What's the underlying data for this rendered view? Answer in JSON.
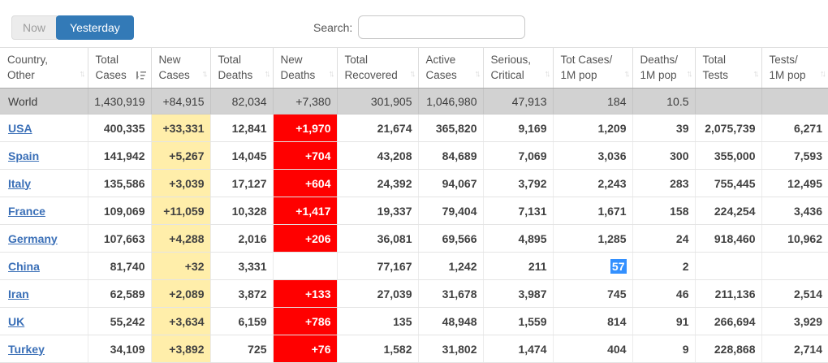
{
  "toolbar": {
    "now_label": "Now",
    "yesterday_label": "Yesterday",
    "search_label": "Search:",
    "search_value": ""
  },
  "icons": {
    "sort_up": "↑",
    "sort_down": "↓",
    "active_sort": "sort-descending"
  },
  "colors": {
    "accent": "#337ab7",
    "new_cases_bg": "#FFEEAA",
    "new_deaths_bg": "#FF0000",
    "selection": "#3390FF",
    "world_row_bg": "#D2D2D2",
    "link": "#3A6FB7"
  },
  "table": {
    "columns": [
      {
        "line1": "Country,",
        "line2": "Other",
        "key": "country",
        "sorted": false
      },
      {
        "line1": "Total",
        "line2": "Cases",
        "key": "total_cases",
        "sorted": true
      },
      {
        "line1": "New",
        "line2": "Cases",
        "key": "new_cases",
        "sorted": false
      },
      {
        "line1": "Total",
        "line2": "Deaths",
        "key": "total_deaths",
        "sorted": false
      },
      {
        "line1": "New",
        "line2": "Deaths",
        "key": "new_deaths",
        "sorted": false
      },
      {
        "line1": "Total",
        "line2": "Recovered",
        "key": "total_recovered",
        "sorted": false
      },
      {
        "line1": "Active",
        "line2": "Cases",
        "key": "active_cases",
        "sorted": false
      },
      {
        "line1": "Serious,",
        "line2": "Critical",
        "key": "serious_critical",
        "sorted": false
      },
      {
        "line1": "Tot Cases/",
        "line2": "1M pop",
        "key": "tot_cases_1m",
        "sorted": false
      },
      {
        "line1": "Deaths/",
        "line2": "1M pop",
        "key": "deaths_1m",
        "sorted": false
      },
      {
        "line1": "Total",
        "line2": "Tests",
        "key": "total_tests",
        "sorted": false
      },
      {
        "line1": "Tests/",
        "line2": "1M pop",
        "key": "tests_1m",
        "sorted": false
      }
    ],
    "rows": [
      {
        "country": "World",
        "is_world": true,
        "total_cases": "1,430,919",
        "new_cases": "+84,915",
        "total_deaths": "82,034",
        "new_deaths": "+7,380",
        "total_recovered": "301,905",
        "active_cases": "1,046,980",
        "serious_critical": "47,913",
        "tot_cases_1m": "184",
        "deaths_1m": "10.5",
        "total_tests": "",
        "tests_1m": ""
      },
      {
        "country": "USA",
        "total_cases": "400,335",
        "new_cases": "+33,331",
        "total_deaths": "12,841",
        "new_deaths": "+1,970",
        "total_recovered": "21,674",
        "active_cases": "365,820",
        "serious_critical": "9,169",
        "tot_cases_1m": "1,209",
        "deaths_1m": "39",
        "total_tests": "2,075,739",
        "tests_1m": "6,271"
      },
      {
        "country": "Spain",
        "total_cases": "141,942",
        "new_cases": "+5,267",
        "total_deaths": "14,045",
        "new_deaths": "+704",
        "total_recovered": "43,208",
        "active_cases": "84,689",
        "serious_critical": "7,069",
        "tot_cases_1m": "3,036",
        "deaths_1m": "300",
        "total_tests": "355,000",
        "tests_1m": "7,593"
      },
      {
        "country": "Italy",
        "total_cases": "135,586",
        "new_cases": "+3,039",
        "total_deaths": "17,127",
        "new_deaths": "+604",
        "total_recovered": "24,392",
        "active_cases": "94,067",
        "serious_critical": "3,792",
        "tot_cases_1m": "2,243",
        "deaths_1m": "283",
        "total_tests": "755,445",
        "tests_1m": "12,495"
      },
      {
        "country": "France",
        "total_cases": "109,069",
        "new_cases": "+11,059",
        "total_deaths": "10,328",
        "new_deaths": "+1,417",
        "total_recovered": "19,337",
        "active_cases": "79,404",
        "serious_critical": "7,131",
        "tot_cases_1m": "1,671",
        "deaths_1m": "158",
        "total_tests": "224,254",
        "tests_1m": "3,436"
      },
      {
        "country": "Germany",
        "total_cases": "107,663",
        "new_cases": "+4,288",
        "total_deaths": "2,016",
        "new_deaths": "+206",
        "total_recovered": "36,081",
        "active_cases": "69,566",
        "serious_critical": "4,895",
        "tot_cases_1m": "1,285",
        "deaths_1m": "24",
        "total_tests": "918,460",
        "tests_1m": "10,962"
      },
      {
        "country": "China",
        "total_cases": "81,740",
        "new_cases": "+32",
        "total_deaths": "3,331",
        "new_deaths": "",
        "total_recovered": "77,167",
        "active_cases": "1,242",
        "serious_critical": "211",
        "tot_cases_1m": "57",
        "deaths_1m": "2",
        "total_tests": "",
        "tests_1m": "",
        "selected_cell": "tot_cases_1m"
      },
      {
        "country": "Iran",
        "total_cases": "62,589",
        "new_cases": "+2,089",
        "total_deaths": "3,872",
        "new_deaths": "+133",
        "total_recovered": "27,039",
        "active_cases": "31,678",
        "serious_critical": "3,987",
        "tot_cases_1m": "745",
        "deaths_1m": "46",
        "total_tests": "211,136",
        "tests_1m": "2,514"
      },
      {
        "country": "UK",
        "total_cases": "55,242",
        "new_cases": "+3,634",
        "total_deaths": "6,159",
        "new_deaths": "+786",
        "total_recovered": "135",
        "active_cases": "48,948",
        "serious_critical": "1,559",
        "tot_cases_1m": "814",
        "deaths_1m": "91",
        "total_tests": "266,694",
        "tests_1m": "3,929"
      },
      {
        "country": "Turkey",
        "total_cases": "34,109",
        "new_cases": "+3,892",
        "total_deaths": "725",
        "new_deaths": "+76",
        "total_recovered": "1,582",
        "active_cases": "31,802",
        "serious_critical": "1,474",
        "tot_cases_1m": "404",
        "deaths_1m": "9",
        "total_tests": "228,868",
        "tests_1m": "2,714"
      }
    ]
  }
}
